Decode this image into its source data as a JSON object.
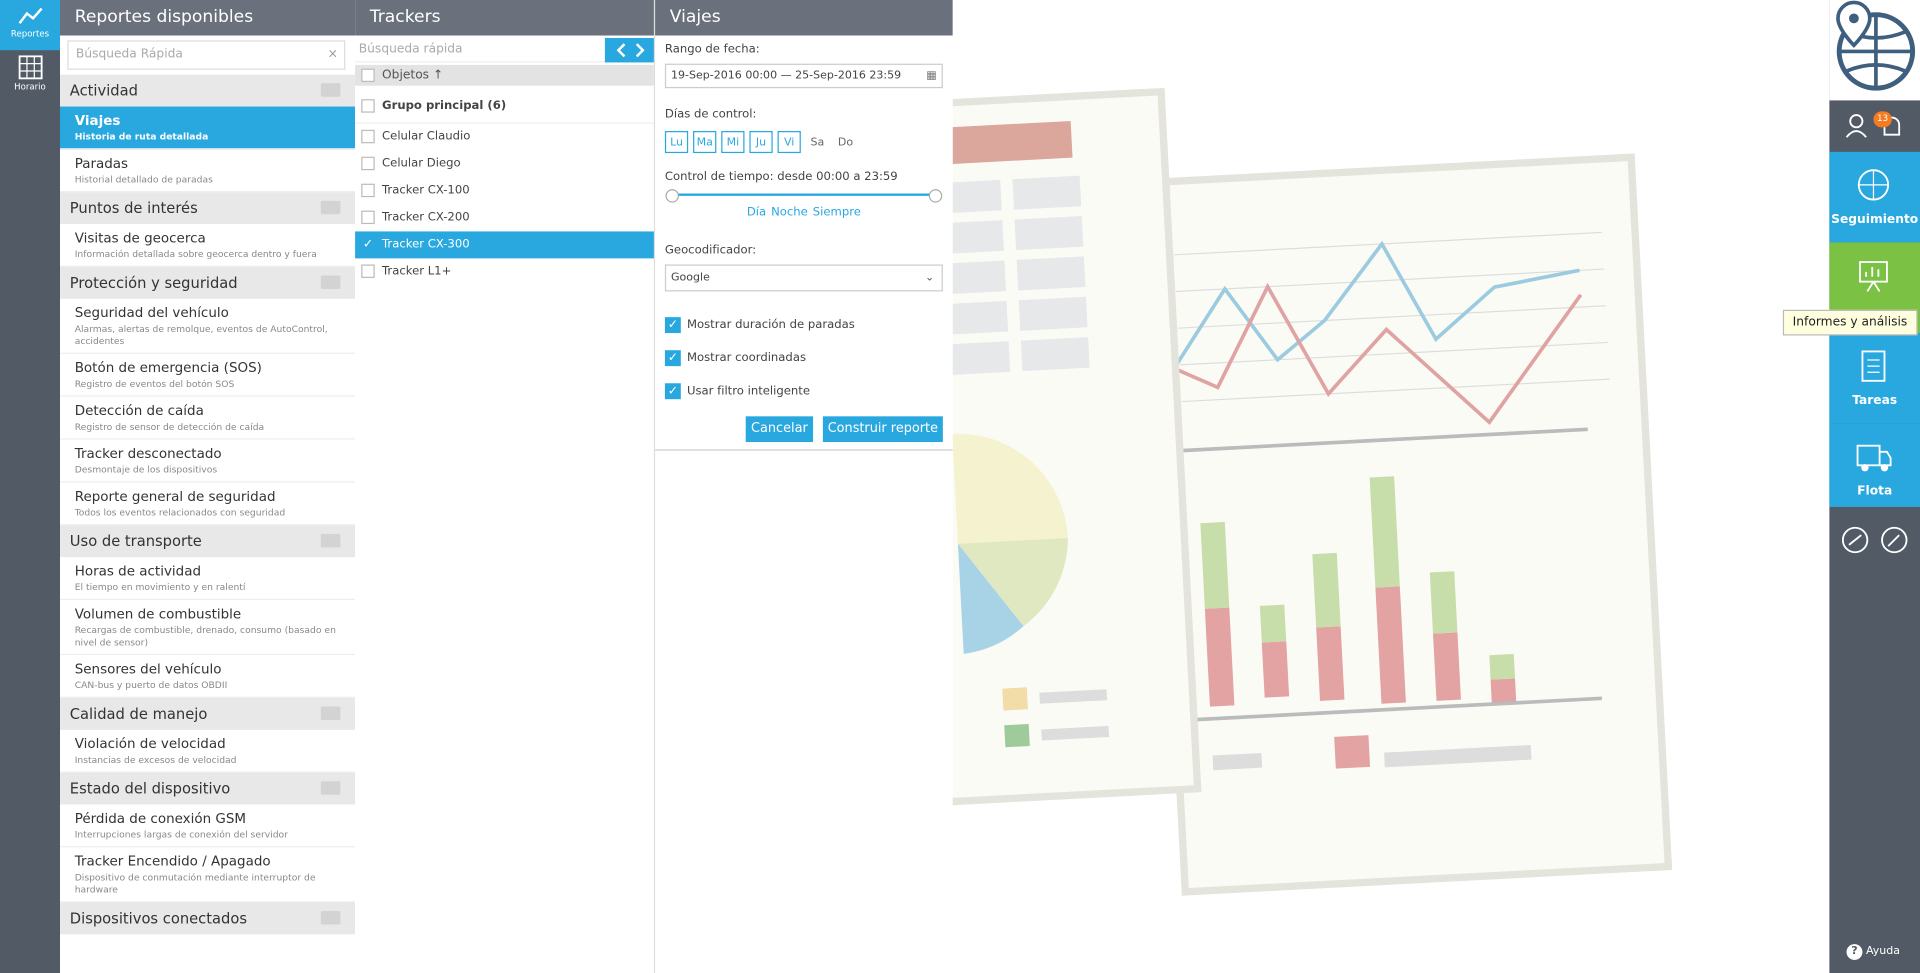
{
  "nav": [
    {
      "label": "Reportes",
      "active": true
    },
    {
      "label": "Horario",
      "active": false
    }
  ],
  "reports": {
    "title": "Reportes disponibles",
    "search_placeholder": "Búsqueda Rápida",
    "sections": [
      {
        "title": "Actividad",
        "items": [
          {
            "name": "Viajes",
            "desc": "Historia de ruta detallada",
            "active": true
          },
          {
            "name": "Paradas",
            "desc": "Historial detallado de paradas"
          }
        ]
      },
      {
        "title": "Puntos de interés",
        "items": [
          {
            "name": "Visitas de geocerca",
            "desc": "Información detallada sobre geocerca dentro y fuera"
          }
        ]
      },
      {
        "title": "Protección y seguridad",
        "items": [
          {
            "name": "Seguridad del vehículo",
            "desc": "Alarmas, alertas de remolque, eventos de AutoControl, accidentes"
          },
          {
            "name": "Botón de emergencia (SOS)",
            "desc": "Registro de eventos del botón SOS"
          },
          {
            "name": "Detección de caída",
            "desc": "Registro de sensor de detección de caída"
          },
          {
            "name": "Tracker desconectado",
            "desc": "Desmontaje de los dispositivos"
          },
          {
            "name": "Reporte general de seguridad",
            "desc": "Todos los eventos relacionados con seguridad"
          }
        ]
      },
      {
        "title": "Uso de transporte",
        "items": [
          {
            "name": "Horas de actividad",
            "desc": "El tiempo en movimiento y en ralentí"
          },
          {
            "name": "Volumen de combustible",
            "desc": "Recargas de combustible, drenado, consumo (basado en nivel de sensor)"
          },
          {
            "name": "Sensores del vehículo",
            "desc": "CAN-bus y puerto de datos OBDII"
          }
        ]
      },
      {
        "title": "Calidad de manejo",
        "items": [
          {
            "name": "Violación de velocidad",
            "desc": "Instancias de excesos de velocidad"
          }
        ]
      },
      {
        "title": "Estado del dispositivo",
        "items": [
          {
            "name": "Pérdida de conexión GSM",
            "desc": "Interrupciones largas de conexión del servidor"
          },
          {
            "name": "Tracker Encendido / Apagado",
            "desc": "Dispositivo de conmutación mediante interruptor de hardware"
          }
        ]
      },
      {
        "title": "Dispositivos conectados",
        "items": []
      }
    ]
  },
  "trackers": {
    "title": "Trackers",
    "search_placeholder": "Búsqueda rápida",
    "column": "Objetos ↑",
    "group": "Grupo principal (6)",
    "items": [
      {
        "name": "Celular Claudio"
      },
      {
        "name": "Celular Diego"
      },
      {
        "name": "Tracker CX-100"
      },
      {
        "name": "Tracker CX-200"
      },
      {
        "name": "Tracker CX-300",
        "checked": true
      },
      {
        "name": "Tracker L1+"
      }
    ]
  },
  "form": {
    "title": "Viajes",
    "date_label": "Rango de fecha:",
    "date_value": "19-Sep-2016 00:00 — 25-Sep-2016 23:59",
    "days_label": "Días de control:",
    "days": [
      {
        "label": "Lu",
        "on": true
      },
      {
        "label": "Ma",
        "on": true
      },
      {
        "label": "Mi",
        "on": true
      },
      {
        "label": "Ju",
        "on": true
      },
      {
        "label": "Vi",
        "on": true
      },
      {
        "label": "Sa",
        "on": false
      },
      {
        "label": "Do",
        "on": false
      }
    ],
    "time_label": "Control de tiempo: desde 00:00 a 23:59",
    "time_presets": [
      "Día",
      "Noche",
      "Siempre"
    ],
    "geocoder_label": "Geocodificador:",
    "geocoder": "Google",
    "options": [
      "Mostrar duración de paradas",
      "Mostrar coordinadas",
      "Usar filtro inteligente"
    ],
    "cancel": "Cancelar",
    "build": "Construir reporte"
  },
  "sidebar": {
    "badge": "13",
    "tiles": [
      {
        "label": "Seguimiento",
        "color": "#29a8e0"
      },
      {
        "label": "",
        "color": "#7bc143"
      },
      {
        "label": "Tareas",
        "color": "#29a8e0"
      },
      {
        "label": "Flota",
        "color": "#29a8e0"
      }
    ],
    "tooltip": "Informes y análisis",
    "help": "Ayuda"
  }
}
